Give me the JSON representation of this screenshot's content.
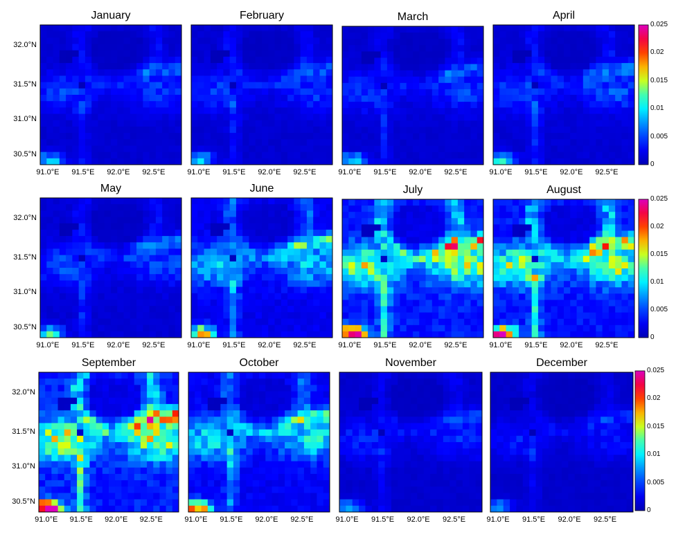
{
  "chart_data": {
    "type": "heatmap",
    "panels": [
      {
        "title": "January",
        "intensity": 0.18
      },
      {
        "title": "February",
        "intensity": 0.18
      },
      {
        "title": "March",
        "intensity": 0.18
      },
      {
        "title": "April",
        "intensity": 0.2
      },
      {
        "title": "May",
        "intensity": 0.2
      },
      {
        "title": "June",
        "intensity": 0.35
      },
      {
        "title": "July",
        "intensity": 0.55
      },
      {
        "title": "August",
        "intensity": 0.52
      },
      {
        "title": "September",
        "intensity": 0.58
      },
      {
        "title": "October",
        "intensity": 0.4
      },
      {
        "title": "November",
        "intensity": 0.16
      },
      {
        "title": "December",
        "intensity": 0.14
      }
    ],
    "x_ticks": [
      "91.0°E",
      "91.5°E",
      "92.0°E",
      "92.5°E"
    ],
    "y_ticks": [
      "32.0°N",
      "31.5°N",
      "31.0°N",
      "30.5°N"
    ],
    "colorbar": {
      "ticks": [
        "0.025",
        "0.02",
        "0.015",
        "0.01",
        "0.005",
        "0"
      ],
      "range": [
        0,
        0.025
      ],
      "colormap": "jet-magenta"
    },
    "grid": false
  }
}
